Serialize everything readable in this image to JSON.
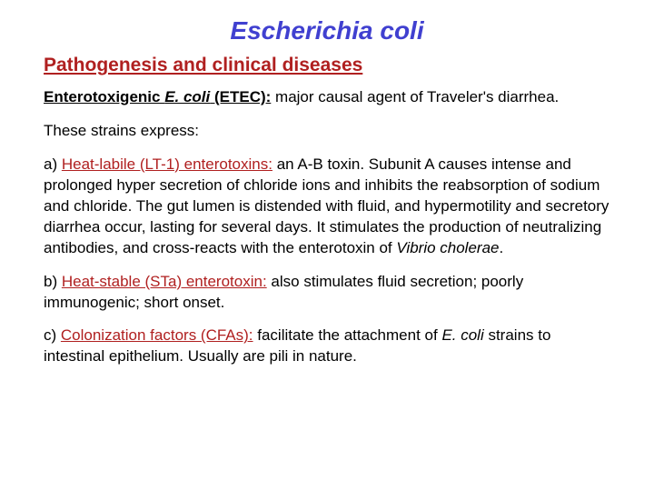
{
  "title": "Escherichia coli",
  "subtitle": "Pathogenesis and clinical diseases",
  "intro": {
    "lead_bold": "Enterotoxigenic ",
    "lead_italic": "E. coli",
    "lead_after": " (ETEC):",
    "rest": " major causal agent of Traveler's diarrhea."
  },
  "express_line": "These strains express:",
  "item_a": {
    "label": "a) ",
    "heading": "Heat-labile (LT-1) enterotoxins:",
    "body_1": "  an A-B toxin. Subunit A causes intense and prolonged hyper secretion of chloride ions and inhibits the reabsorption of sodium and chloride. The gut lumen is distended with fluid, and hypermotility and secretory diarrhea occur, lasting for several days. It stimulates the production of neutralizing antibodies, and cross-reacts with the enterotoxin of ",
    "vibrio": "Vibrio cholerae",
    "body_2": "."
  },
  "item_b": {
    "label": "b) ",
    "heading": "Heat-stable (STa) enterotoxin:",
    "body": " also stimulates fluid secretion; poorly immunogenic; short onset."
  },
  "item_c": {
    "label": "c) ",
    "heading": "Colonization factors (CFAs):",
    "body_1": "  facilitate the attachment of ",
    "ecoli": "E. coli",
    "body_2": " strains to intestinal epithelium.  Usually are pili in nature."
  },
  "colors": {
    "title": "#4040d0",
    "accent": "#b02020",
    "text": "#000000",
    "background": "#ffffff"
  },
  "fontsizes": {
    "title": 28,
    "subtitle": 21,
    "body": 17
  }
}
